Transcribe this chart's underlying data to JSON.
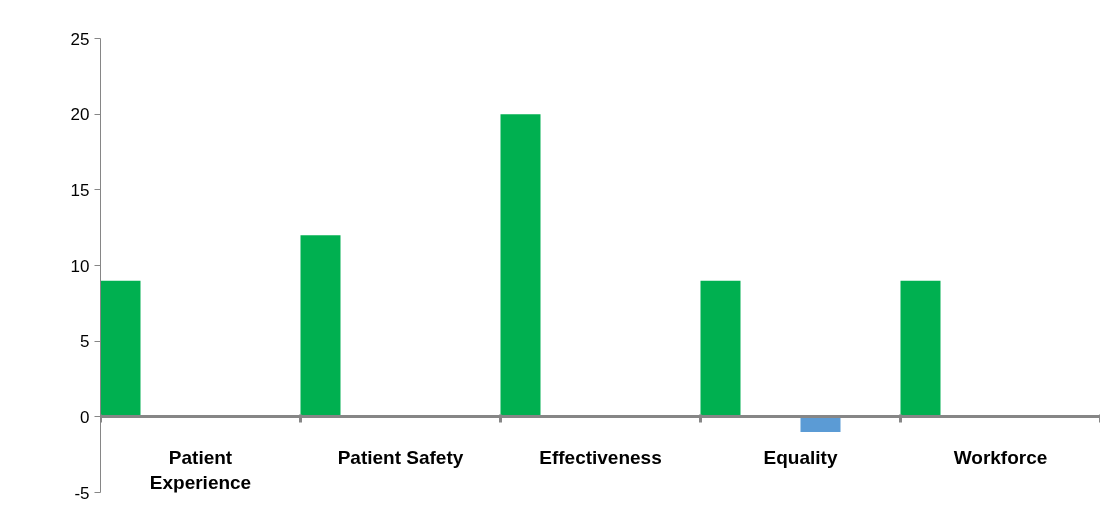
{
  "chart_data": {
    "type": "bar",
    "categories": [
      "Patient Experience",
      "Patient Safety",
      "Effectiveness",
      "Equality",
      "Workforce"
    ],
    "series": [
      {
        "color": "#00b050",
        "values": [
          9,
          12,
          20,
          9,
          9
        ]
      },
      {
        "color": "#5b9bd5",
        "values": [
          0,
          0,
          0,
          -1,
          0
        ]
      }
    ],
    "ylim": [
      -5,
      25
    ],
    "yticks": [
      -5,
      0,
      5,
      10,
      15,
      20,
      25
    ],
    "grid": false
  }
}
